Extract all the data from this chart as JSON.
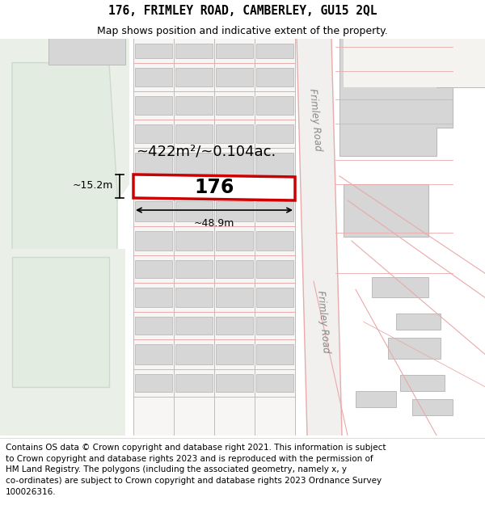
{
  "title": "176, FRIMLEY ROAD, CAMBERLEY, GU15 2QL",
  "subtitle": "Map shows position and indicative extent of the property.",
  "footer_text": "Contains OS data © Crown copyright and database right 2021. This information is subject\nto Crown copyright and database rights 2023 and is reproduced with the permission of\nHM Land Registry. The polygons (including the associated geometry, namely x, y\nco-ordinates) are subject to Crown copyright and database rights 2023 Ordnance Survey\n100026316.",
  "map_bg": "#f4f3ef",
  "building_fill": "#d6d6d6",
  "building_edge": "#bbbbbb",
  "green_fill": "#eaf0e8",
  "green_inner_fill": "#e2ece0",
  "green_inner_edge": "#ccdacc",
  "road_band_fill": "#f0f0ee",
  "highlight_fill": "#ffffff",
  "highlight_edge": "#cc0000",
  "plot_line_color": "#e8aaaa",
  "road_text_color": "#888888",
  "label_176": "176",
  "area_label": "~422m²/~0.104ac.",
  "width_label": "~48.9m",
  "height_label": "~15.2m",
  "road_label": "Frimley Road",
  "title_fontsize": 10.5,
  "subtitle_fontsize": 9,
  "footer_fontsize": 7.5,
  "area_fontsize": 13,
  "label_fontsize": 17,
  "dim_fontsize": 9
}
